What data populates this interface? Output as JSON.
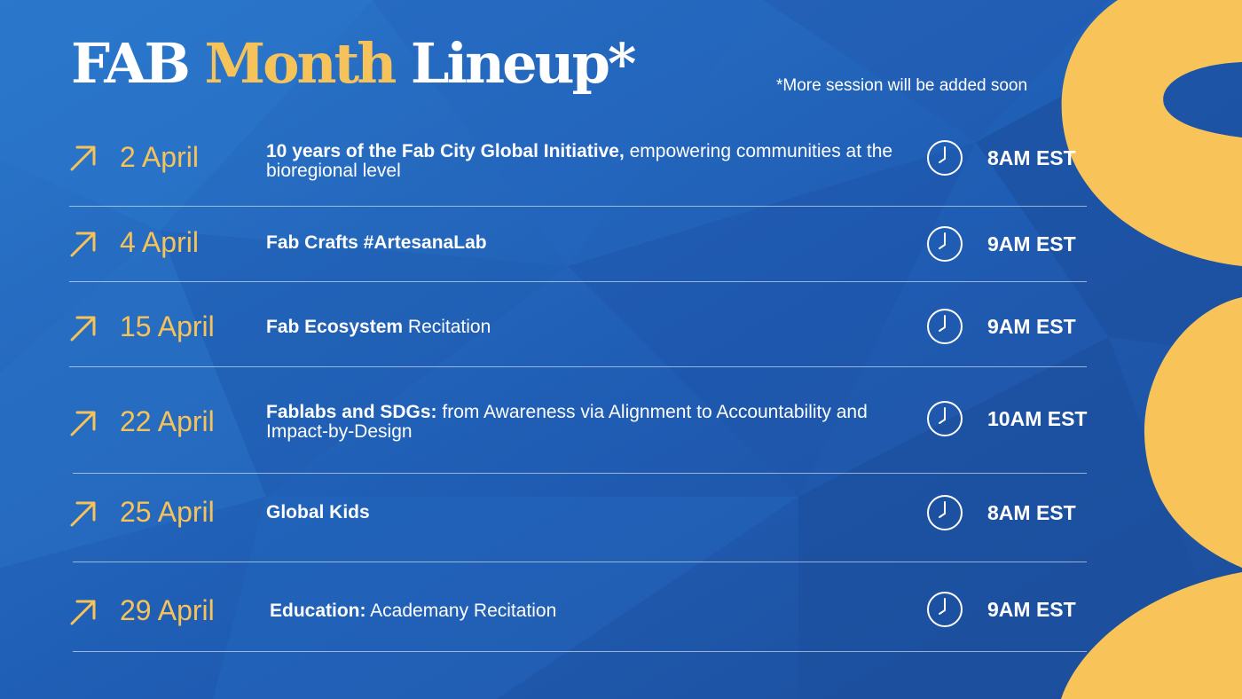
{
  "title": {
    "part1": "FAB",
    "part2": "Month",
    "part3": "Lineup*"
  },
  "note": "*More session will be added soon",
  "colors": {
    "background": "#2160b8",
    "accent": "#f6c35a",
    "text": "#ffffff"
  },
  "icons": {
    "row_marker": "arrow-up-right-icon",
    "time_marker": "clock-icon"
  },
  "sessions": [
    {
      "date": "2 April",
      "title_bold": "10 years of the Fab City Global Initiative,",
      "title_rest": " empowering communities at the bioregional level",
      "time": "8AM EST"
    },
    {
      "date": "4 April",
      "title_bold": "Fab Crafts #ArtesanaLab",
      "title_rest": "",
      "time": "9AM EST"
    },
    {
      "date": "15 April",
      "title_bold": "Fab Ecosystem",
      "title_rest": " Recitation",
      "time": "9AM EST"
    },
    {
      "date": "22 April",
      "title_bold": "Fablabs and SDGs:",
      "title_rest": " from Awareness via Alignment to Accountability and Impact-by-Design",
      "time": "10AM EST"
    },
    {
      "date": "25 April",
      "title_bold": "Global Kids",
      "title_rest": "",
      "time": "8AM EST"
    },
    {
      "date": "29 April",
      "title_bold": "Education:",
      "title_rest": " Academany Recitation",
      "time": "9AM EST"
    }
  ]
}
